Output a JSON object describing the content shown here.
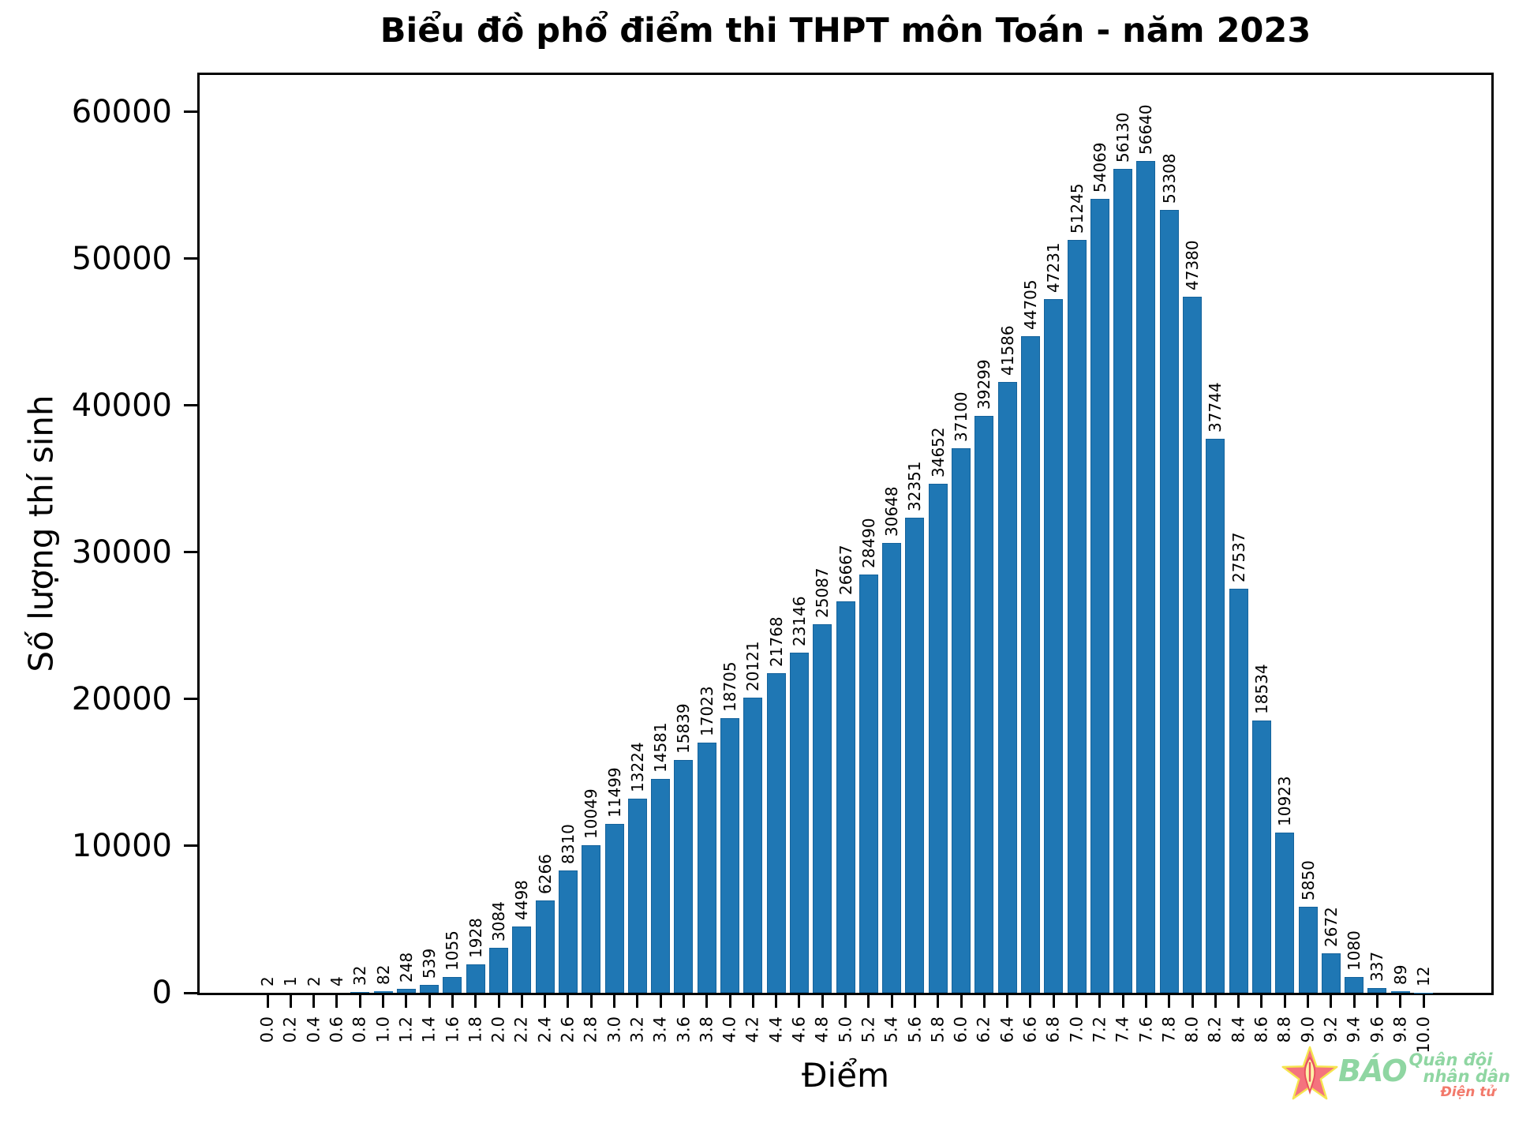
{
  "chart_data": {
    "type": "bar",
    "title": "Biểu đồ phổ điểm thi THPT môn Toán - năm 2023",
    "xlabel": "Điểm",
    "ylabel": "Số lượng thí sinh",
    "categories": [
      "0.0",
      "0.2",
      "0.4",
      "0.6",
      "0.8",
      "1.0",
      "1.2",
      "1.4",
      "1.6",
      "1.8",
      "2.0",
      "2.2",
      "2.4",
      "2.6",
      "2.8",
      "3.0",
      "3.2",
      "3.4",
      "3.6",
      "3.8",
      "4.0",
      "4.2",
      "4.4",
      "4.6",
      "4.8",
      "5.0",
      "5.2",
      "5.4",
      "5.6",
      "5.8",
      "6.0",
      "6.2",
      "6.4",
      "6.6",
      "6.8",
      "7.0",
      "7.2",
      "7.4",
      "7.6",
      "7.8",
      "8.0",
      "8.2",
      "8.4",
      "8.6",
      "8.8",
      "9.0",
      "9.2",
      "9.4",
      "9.6",
      "9.8",
      "10.0"
    ],
    "values": [
      2,
      1,
      2,
      4,
      32,
      82,
      248,
      539,
      1055,
      1928,
      3084,
      4498,
      6266,
      8310,
      10049,
      11499,
      13224,
      14581,
      15839,
      17023,
      18705,
      20121,
      21768,
      23146,
      25087,
      26667,
      28490,
      30648,
      32351,
      34652,
      37100,
      39299,
      41586,
      44705,
      47231,
      51245,
      54069,
      56130,
      56640,
      53308,
      47380,
      37744,
      27537,
      18534,
      10923,
      5850,
      2672,
      1080,
      337,
      89,
      12
    ],
    "value_labels_shown": true,
    "yticks": [
      0,
      10000,
      20000,
      30000,
      40000,
      50000,
      60000
    ],
    "ylim": [
      0,
      62500
    ],
    "grid": false,
    "legend": "none",
    "bar_color": "#1f77b4",
    "bar_edge_color": "#15639c",
    "axis_color": "#000000"
  },
  "logo": {
    "line1": "BÁO",
    "line2": "Quân đội",
    "line3": "nhân dân",
    "line4": "Điện tử",
    "star_icon": "star-with-pen-nib",
    "colors": {
      "star_fill": "#f4737e",
      "star_outline": "#f5e54f",
      "nib_fill": "#fdf2a8",
      "nib_stroke": "#e8505e",
      "text_green": "#8fd6a2",
      "text_orange": "#f2796b"
    }
  }
}
